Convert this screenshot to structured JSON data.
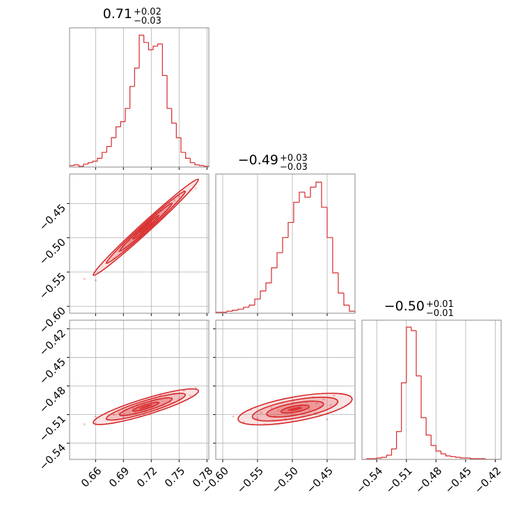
{
  "chart_data": [
    {
      "type": "hist",
      "title": "0.71",
      "title_plus": "+0.02",
      "title_minus": "−0.03",
      "color": "#d62728",
      "bins": [
        0.632,
        0.637,
        0.642,
        0.647,
        0.652,
        0.657,
        0.662,
        0.667,
        0.672,
        0.677,
        0.682,
        0.687,
        0.692,
        0.697,
        0.702,
        0.707,
        0.712,
        0.717,
        0.722,
        0.727,
        0.732,
        0.737,
        0.742,
        0.747,
        0.752,
        0.757,
        0.762,
        0.767,
        0.772,
        0.777,
        0.782
      ],
      "counts": [
        2,
        3,
        1,
        4,
        6,
        8,
        12,
        20,
        28,
        40,
        55,
        62,
        80,
        110,
        135,
        180,
        170,
        160,
        165,
        168,
        125,
        80,
        60,
        40,
        20,
        12,
        6,
        3,
        2,
        1
      ],
      "xlim": [
        0.632,
        0.782
      ],
      "ylim": [
        0,
        190
      ],
      "xticks": [
        0.66,
        0.69,
        0.72,
        0.75,
        0.78
      ],
      "xticklabels": false,
      "grid": true
    },
    {
      "type": "scatter",
      "color": "#d62728",
      "x": [
        0.648,
        0.66,
        0.672,
        0.68,
        0.685,
        0.69,
        0.693,
        0.697,
        0.7,
        0.703,
        0.705,
        0.708,
        0.71,
        0.712,
        0.714,
        0.716,
        0.718,
        0.72,
        0.722,
        0.725,
        0.727,
        0.73,
        0.733,
        0.736,
        0.74,
        0.745,
        0.75,
        0.755,
        0.762,
        0.768
      ],
      "y": [
        -0.56,
        -0.562,
        -0.535,
        -0.53,
        -0.52,
        -0.51,
        -0.515,
        -0.505,
        -0.5,
        -0.495,
        -0.503,
        -0.49,
        -0.488,
        -0.495,
        -0.48,
        -0.485,
        -0.478,
        -0.47,
        -0.482,
        -0.465,
        -0.47,
        -0.46,
        -0.455,
        -0.462,
        -0.45,
        -0.445,
        -0.44,
        -0.432,
        -0.43,
        -0.428
      ],
      "xlim": [
        0.632,
        0.782
      ],
      "ylim": [
        -0.61,
        -0.407
      ],
      "xticks": [
        0.66,
        0.69,
        0.72,
        0.75,
        0.78
      ],
      "xticklabels": false,
      "yticks": [
        {
          "value": -0.45,
          "label": "−0.45"
        },
        {
          "value": -0.5,
          "label": "−0.50"
        },
        {
          "value": -0.55,
          "label": "−0.55"
        },
        {
          "value": -0.6,
          "label": "−0.60"
        }
      ],
      "yticklabels": true,
      "grid": true
    },
    {
      "type": "hist",
      "title": "−0.49",
      "title_plus": "+0.03",
      "title_minus": "−0.03",
      "color": "#d62728",
      "bins": [
        -0.61,
        -0.602,
        -0.594,
        -0.586,
        -0.578,
        -0.57,
        -0.562,
        -0.554,
        -0.546,
        -0.538,
        -0.53,
        -0.522,
        -0.514,
        -0.506,
        -0.498,
        -0.49,
        -0.482,
        -0.474,
        -0.466,
        -0.458,
        -0.45,
        -0.442,
        -0.434,
        -0.426,
        -0.418,
        -0.41
      ],
      "counts": [
        1,
        1,
        2,
        3,
        4,
        6,
        8,
        14,
        22,
        30,
        45,
        60,
        75,
        90,
        110,
        120,
        115,
        125,
        130,
        105,
        75,
        40,
        20,
        8,
        2
      ],
      "xlim": [
        -0.61,
        -0.41
      ],
      "ylim": [
        0,
        138
      ],
      "xticks": [
        -0.6,
        -0.55,
        -0.5,
        -0.45
      ],
      "xticklabels": false,
      "grid": true
    },
    {
      "type": "scatter",
      "color": "#d62728",
      "x": [
        0.648,
        0.66,
        0.672,
        0.68,
        0.685,
        0.69,
        0.693,
        0.697,
        0.7,
        0.703,
        0.705,
        0.708,
        0.71,
        0.712,
        0.714,
        0.716,
        0.718,
        0.72,
        0.722,
        0.725,
        0.727,
        0.73,
        0.733,
        0.736,
        0.74,
        0.745,
        0.75,
        0.755,
        0.762,
        0.768
      ],
      "y": [
        -0.52,
        -0.512,
        -0.515,
        -0.51,
        -0.508,
        -0.513,
        -0.505,
        -0.51,
        -0.503,
        -0.508,
        -0.5,
        -0.512,
        -0.505,
        -0.498,
        -0.507,
        -0.5,
        -0.51,
        -0.496,
        -0.503,
        -0.494,
        -0.505,
        -0.49,
        -0.5,
        -0.492,
        -0.497,
        -0.488,
        -0.494,
        -0.485,
        -0.49,
        -0.482
      ],
      "xlim": [
        0.632,
        0.782
      ],
      "ylim": [
        -0.557,
        -0.411
      ],
      "xticks": [
        0.66,
        0.69,
        0.72,
        0.75,
        0.78
      ],
      "xticklabels": true,
      "yticks": [
        {
          "value": -0.42,
          "label": "−0.42"
        },
        {
          "value": -0.45,
          "label": "−0.45"
        },
        {
          "value": -0.48,
          "label": "−0.48"
        },
        {
          "value": -0.51,
          "label": "−0.51"
        },
        {
          "value": -0.54,
          "label": "−0.54"
        }
      ],
      "yticklabels": true,
      "grid": true
    },
    {
      "type": "scatter",
      "color": "#d62728",
      "x": [
        -0.585,
        -0.57,
        -0.56,
        -0.55,
        -0.545,
        -0.54,
        -0.53,
        -0.525,
        -0.52,
        -0.515,
        -0.51,
        -0.505,
        -0.5,
        -0.498,
        -0.495,
        -0.49,
        -0.487,
        -0.485,
        -0.48,
        -0.475,
        -0.47,
        -0.467,
        -0.465,
        -0.46,
        -0.455,
        -0.45,
        -0.445,
        -0.44,
        -0.435,
        -0.43
      ],
      "y": [
        -0.512,
        -0.518,
        -0.505,
        -0.514,
        -0.508,
        -0.52,
        -0.503,
        -0.512,
        -0.506,
        -0.498,
        -0.515,
        -0.503,
        -0.508,
        -0.495,
        -0.51,
        -0.502,
        -0.5,
        -0.512,
        -0.497,
        -0.505,
        -0.492,
        -0.508,
        -0.498,
        -0.502,
        -0.494,
        -0.515,
        -0.5,
        -0.49,
        -0.497,
        -0.488
      ],
      "xlim": [
        -0.61,
        -0.41
      ],
      "ylim": [
        -0.557,
        -0.411
      ],
      "xticks": [
        {
          "value": -0.6,
          "label": "−0.60"
        },
        {
          "value": -0.55,
          "label": "−0.55"
        },
        {
          "value": -0.5,
          "label": "−0.50"
        },
        {
          "value": -0.45,
          "label": "−0.45"
        }
      ],
      "xticklabels": true,
      "yticks": [
        -0.42,
        -0.45,
        -0.48,
        -0.51,
        -0.54
      ],
      "yticklabels": false,
      "grid": true
    },
    {
      "type": "hist",
      "title": "−0.50",
      "title_plus": "+0.01",
      "title_minus": "−0.01",
      "color": "#d62728",
      "bins": [
        -0.555,
        -0.55,
        -0.545,
        -0.54,
        -0.535,
        -0.53,
        -0.525,
        -0.52,
        -0.515,
        -0.51,
        -0.505,
        -0.5,
        -0.495,
        -0.49,
        -0.485,
        -0.48,
        -0.475,
        -0.47,
        -0.465,
        -0.46,
        -0.455,
        -0.45,
        -0.445,
        -0.44,
        -0.435,
        -0.43,
        -0.425,
        -0.42,
        -0.415
      ],
      "counts": [
        0,
        1,
        1,
        2,
        3,
        6,
        15,
        40,
        110,
        190,
        185,
        120,
        60,
        35,
        20,
        12,
        8,
        5,
        4,
        3,
        2,
        2,
        1,
        1,
        1,
        0,
        0,
        0
      ],
      "xlim": [
        -0.555,
        -0.414
      ],
      "ylim": [
        0,
        200
      ],
      "xticks": [
        {
          "value": -0.54,
          "label": "−0.54"
        },
        {
          "value": -0.51,
          "label": "−0.51"
        },
        {
          "value": -0.48,
          "label": "−0.48"
        },
        {
          "value": -0.45,
          "label": "−0.45"
        },
        {
          "value": -0.42,
          "label": "−0.42"
        }
      ],
      "xticklabels": true,
      "grid": true
    }
  ]
}
